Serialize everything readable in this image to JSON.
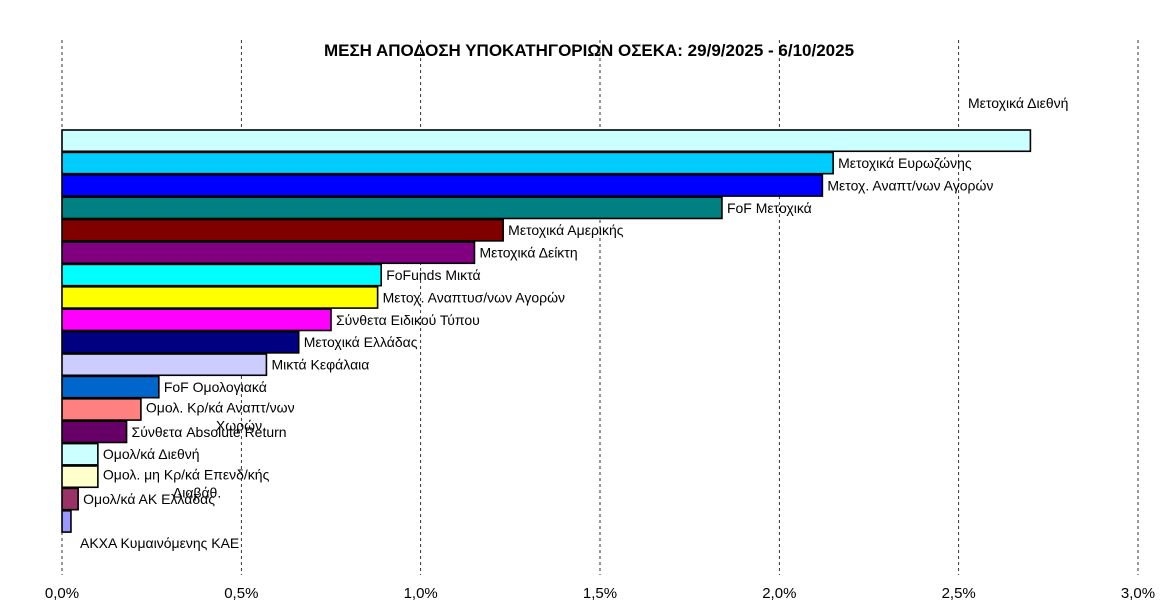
{
  "chart_data": {
    "type": "bar",
    "orientation": "horizontal",
    "title": "ΜΕΣΗ ΑΠΟΔΟΣΗ ΥΠΟΚΑΤΗΓΟΡΙΩΝ ΟΣΕΚΑ: 29/9/2025 - 6/10/2025",
    "xlabel": "",
    "ylabel": "",
    "xlim": [
      0,
      3.0
    ],
    "x_ticks": [
      {
        "value": 0.0,
        "label": "0,0%"
      },
      {
        "value": 0.5,
        "label": "0,5%"
      },
      {
        "value": 1.0,
        "label": "1,0%"
      },
      {
        "value": 1.5,
        "label": "1,5%"
      },
      {
        "value": 2.0,
        "label": "2,0%"
      },
      {
        "value": 2.5,
        "label": "2,5%"
      },
      {
        "value": 3.0,
        "label": "3,0%"
      }
    ],
    "grid": "vertical-dashed",
    "unit": "%",
    "categories": [
      "Μετοχικά Διεθνή",
      "Μετοχικά Ευρωζώνης",
      "Μετοχ. Αναπτ/νων Αγορών",
      "FoF Μετοχικά",
      "Μετοχικά Αμερικής",
      "Μετοχικά Δείκτη",
      "FoFunds Μικτά",
      "Μετοχ. Αναπτυσ/νων Αγορών",
      "Σύνθετα Ειδικού Τύπου",
      "Μετοχικά Ελλάδας",
      "Μικτά Κεφάλαια",
      "FoF Ομολογιακά",
      "Ομολ. Κρ/κά Αναπτ/νων Χωρών",
      "Σύνθετα Absolute Return",
      "Ομολ/κά Διεθνή",
      "Ομολ. μη Κρ/κά Επενδ/κής Διαβάθ.",
      "Ομολ/κά ΑΚ Ελλάδας",
      "ΑΚΧΑ Κυμαινόμενης ΚΑΕ"
    ],
    "values": [
      2.7,
      2.15,
      2.12,
      1.84,
      1.23,
      1.15,
      0.89,
      0.88,
      0.75,
      0.66,
      0.57,
      0.27,
      0.22,
      0.18,
      0.1,
      0.1,
      0.045,
      0.025
    ],
    "colors": [
      "#CCFFFF",
      "#00CCFF",
      "#0000FF",
      "#008080",
      "#800000",
      "#800080",
      "#00FFFF",
      "#FFFF00",
      "#FF00FF",
      "#000080",
      "#CCCCFF",
      "#0066CC",
      "#FF8080",
      "#660066",
      "#CCFFFF",
      "#FFFFCC",
      "#993366",
      "#9999FF"
    ]
  }
}
